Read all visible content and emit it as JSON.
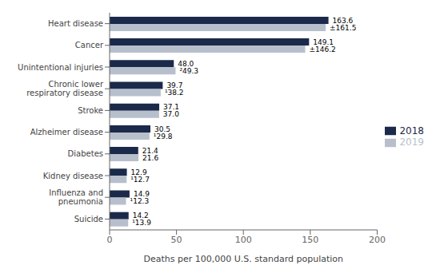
{
  "chart_data": {
    "type": "bar",
    "orientation": "horizontal",
    "categories": [
      "Suicide",
      "Influenza and\npneumonia",
      "Kidney disease",
      "Diabetes",
      "Alzheimer disease",
      "Stroke",
      "Chronic lower\nrespiratory disease",
      "Unintentional injuries",
      "Cancer",
      "Heart disease"
    ],
    "series": [
      {
        "name": "2018",
        "color": "#1b2a4a",
        "values": [
          14.2,
          14.9,
          12.9,
          21.4,
          30.5,
          37.1,
          39.7,
          48.0,
          149.1,
          163.6
        ],
        "value_labels": [
          "14.2",
          "14.9",
          "12.9",
          "21.4",
          "30.5",
          "37.1",
          "39.7",
          "48.0",
          "149.1",
          "163.6"
        ]
      },
      {
        "name": "2019",
        "color": "#b8bfcc",
        "values": [
          13.9,
          12.3,
          12.7,
          21.6,
          29.8,
          37.0,
          38.2,
          49.3,
          146.2,
          161.5
        ],
        "value_labels": [
          "¹13.9",
          "¹12.3",
          "¹12.7",
          "21.6",
          "¹29.8",
          "37.0",
          "¹38.2",
          "²49.3",
          "±146.2",
          "±161.5"
        ]
      }
    ],
    "xlim": [
      0,
      200
    ],
    "xticks": [
      0,
      50,
      100,
      150,
      200
    ],
    "xlabel": "Deaths per 100,000 U.S. standard population",
    "data_labels": true,
    "legend": "right",
    "grid": false
  }
}
